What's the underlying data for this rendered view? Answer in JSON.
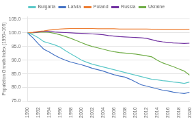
{
  "chart_data": {
    "type": "line",
    "ylabel": "Population Growth Index (1990=100)",
    "x": [
      1990,
      1991,
      1992,
      1993,
      1994,
      1995,
      1996,
      1997,
      1998,
      1999,
      2000,
      2001,
      2002,
      2003,
      2004,
      2005,
      2006,
      2007,
      2008,
      2009,
      2010,
      2011,
      2012,
      2013,
      2014,
      2015,
      2016,
      2017,
      2018,
      2019,
      2020
    ],
    "series": [
      {
        "name": "Bulgaria",
        "color": "#5bc8c8",
        "values": [
          100.0,
          99.3,
          98.2,
          96.8,
          96.2,
          95.6,
          94.8,
          93.5,
          92.3,
          91.2,
          90.0,
          89.2,
          88.5,
          88.0,
          87.5,
          87.0,
          86.5,
          86.0,
          85.5,
          85.0,
          84.5,
          84.0,
          83.5,
          83.0,
          82.8,
          82.5,
          82.3,
          82.0,
          81.8,
          81.5,
          82.0
        ]
      },
      {
        "name": "Latvia",
        "color": "#4472c4",
        "values": [
          100.0,
          98.2,
          96.0,
          94.0,
          93.0,
          91.8,
          90.8,
          90.0,
          89.3,
          88.8,
          88.3,
          87.7,
          87.0,
          86.5,
          86.0,
          85.3,
          84.7,
          84.2,
          83.8,
          83.0,
          82.0,
          81.0,
          80.5,
          80.0,
          79.5,
          79.0,
          78.7,
          78.3,
          78.0,
          77.8,
          78.2
        ]
      },
      {
        "name": "Poland",
        "color": "#ed7d31",
        "values": [
          100.0,
          100.2,
          100.5,
          100.7,
          101.0,
          101.2,
          101.4,
          101.5,
          101.6,
          101.6,
          101.6,
          101.6,
          101.6,
          101.5,
          101.5,
          101.5,
          101.5,
          101.4,
          101.4,
          101.4,
          101.4,
          101.4,
          101.4,
          101.3,
          101.3,
          101.2,
          101.2,
          101.2,
          101.2,
          101.2,
          101.3
        ]
      },
      {
        "name": "Russia",
        "color": "#7030a0",
        "values": [
          100.0,
          100.1,
          100.3,
          100.5,
          100.5,
          100.3,
          100.2,
          100.1,
          100.0,
          99.9,
          99.8,
          99.7,
          99.6,
          99.5,
          99.3,
          99.0,
          98.8,
          98.6,
          98.5,
          98.4,
          98.3,
          98.2,
          98.0,
          97.5,
          97.0,
          96.7,
          96.5,
          96.3,
          96.2,
          96.1,
          96.2
        ]
      },
      {
        "name": "Ukraine",
        "color": "#70ad47",
        "values": [
          100.0,
          100.0,
          100.2,
          100.3,
          100.2,
          99.8,
          99.3,
          98.7,
          98.0,
          97.2,
          96.4,
          95.6,
          95.0,
          94.5,
          94.0,
          93.5,
          93.1,
          92.8,
          92.6,
          92.4,
          92.2,
          91.9,
          91.6,
          91.2,
          90.0,
          89.0,
          88.3,
          87.6,
          86.8,
          86.0,
          84.5
        ]
      }
    ],
    "xlim": [
      1990,
      2020
    ],
    "ylim": [
      75,
      106
    ],
    "xticks": [
      1990,
      1992,
      1994,
      1996,
      1998,
      2000,
      2002,
      2004,
      2006,
      2008,
      2010,
      2012,
      2014,
      2016,
      2018,
      2020
    ],
    "yticks": [
      {
        "value": 75,
        "label": "75.0"
      },
      {
        "value": 80,
        "label": "80.0"
      },
      {
        "value": 85,
        "label": "85.0"
      },
      {
        "value": 90,
        "label": "90.0"
      },
      {
        "value": 95,
        "label": "95.0"
      },
      {
        "value": 100,
        "label": "100.0"
      },
      {
        "value": 105,
        "label": "105.0"
      }
    ],
    "grid": "y",
    "legend": "top"
  }
}
